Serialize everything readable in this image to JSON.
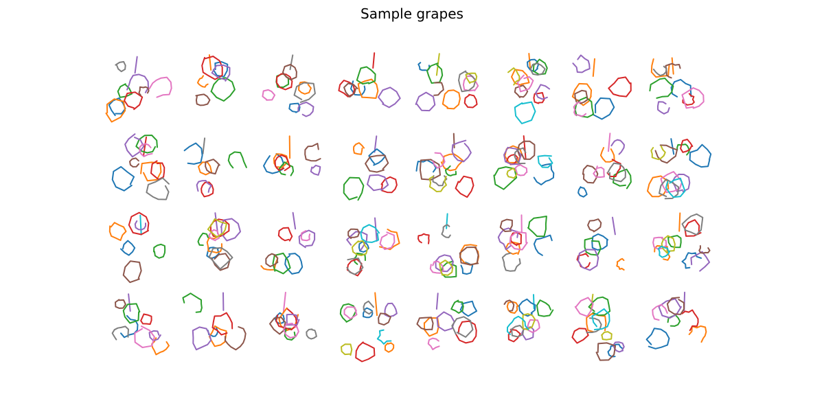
{
  "title": "Sample grapes",
  "grid": {
    "rows": 4,
    "cols": 8
  },
  "palette": [
    "#1f77b4",
    "#ff7f0e",
    "#2ca02c",
    "#d62728",
    "#9467bd",
    "#8c564b",
    "#e377c2",
    "#7f7f7f",
    "#bcbd22",
    "#17becf"
  ],
  "sketch_kind": "grape doodle"
}
